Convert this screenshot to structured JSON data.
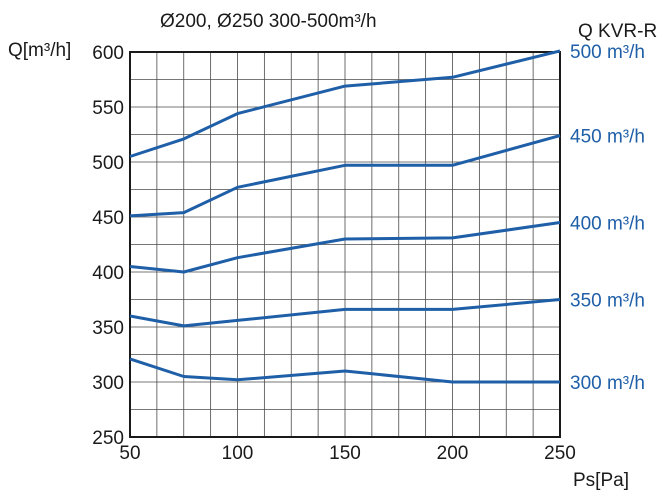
{
  "chart_data": {
    "type": "line",
    "title": "Ø200, Ø250 300-500m³/h",
    "ylabel": "Q[m³/h]",
    "xlabel": "Ps[Pa]",
    "right_axis_title": "Q KVR-R",
    "xlim": [
      50,
      250
    ],
    "ylim": [
      250,
      600
    ],
    "x_ticks": [
      50,
      100,
      150,
      200,
      250
    ],
    "y_ticks": [
      250,
      300,
      350,
      400,
      450,
      500,
      550,
      600
    ],
    "x_minor_step": 12.5,
    "y_minor_step": 25,
    "grid": true,
    "line_color": "#1f5fa8",
    "series": [
      {
        "name": "500 m³/h",
        "x": [
          50,
          75,
          100,
          150,
          200,
          250
        ],
        "y": [
          505,
          521,
          544,
          569,
          577,
          601
        ]
      },
      {
        "name": "450 m³/h",
        "x": [
          50,
          75,
          100,
          150,
          200,
          250
        ],
        "y": [
          451,
          454,
          477,
          497,
          497,
          524
        ]
      },
      {
        "name": "400 m³/h",
        "x": [
          50,
          75,
          100,
          150,
          200,
          250
        ],
        "y": [
          405,
          400,
          413,
          430,
          431,
          445
        ]
      },
      {
        "name": "350 m³/h",
        "x": [
          50,
          75,
          100,
          150,
          200,
          250
        ],
        "y": [
          360,
          351,
          356,
          366,
          366,
          375
        ]
      },
      {
        "name": "300 m³/h",
        "x": [
          50,
          75,
          100,
          150,
          200,
          250
        ],
        "y": [
          321,
          305,
          302,
          310,
          300,
          300
        ]
      }
    ]
  }
}
